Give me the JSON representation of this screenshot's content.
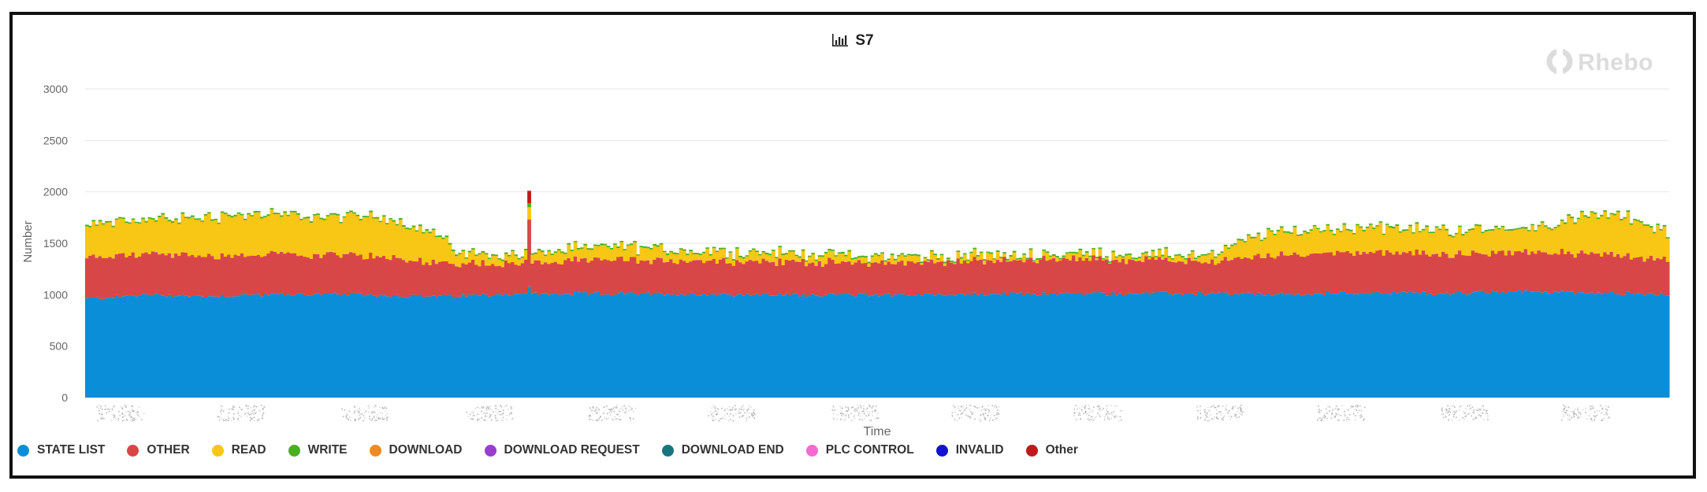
{
  "chart_data": {
    "type": "bar",
    "stacked": true,
    "title": "S7",
    "xlabel": "Time",
    "ylabel": "Number",
    "ylim": [
      0,
      3000
    ],
    "yticks": [
      0,
      500,
      1000,
      1500,
      2000,
      2500,
      3000
    ],
    "grid": true,
    "legend_position": "bottom-left",
    "bar_count": 480,
    "series": [
      {
        "name": "STATE LIST",
        "color": "#0a8ed8",
        "profile": [
          [
            0,
            960
          ],
          [
            20,
            970
          ],
          [
            80,
            1000
          ],
          [
            160,
            985
          ],
          [
            230,
            1000
          ],
          [
            300,
            1005
          ],
          [
            370,
            1000
          ],
          [
            460,
            980
          ],
          [
            560,
            1005
          ],
          [
            700,
            1010
          ],
          [
            900,
            1000
          ],
          [
            1100,
            1000
          ],
          [
            1300,
            1010
          ],
          [
            1500,
            1010
          ],
          [
            1600,
            1000
          ],
          [
            1700,
            1020
          ],
          [
            1800,
            1010
          ],
          [
            1900,
            1030
          ],
          [
            2000,
            1020
          ],
          [
            2100,
            1000
          ]
        ]
      },
      {
        "name": "OTHER",
        "color": "#d84747",
        "profile": [
          [
            0,
            400
          ],
          [
            200,
            390
          ],
          [
            400,
            375
          ],
          [
            460,
            330
          ],
          [
            560,
            300
          ],
          [
            700,
            330
          ],
          [
            900,
            320
          ],
          [
            1100,
            310
          ],
          [
            1300,
            340
          ],
          [
            1500,
            310
          ],
          [
            1550,
            360
          ],
          [
            1600,
            390
          ],
          [
            1700,
            400
          ],
          [
            1800,
            380
          ],
          [
            1900,
            380
          ],
          [
            2000,
            380
          ],
          [
            2100,
            340
          ]
        ]
      },
      {
        "name": "READ",
        "color": "#f8c614",
        "profile": [
          [
            0,
            300
          ],
          [
            80,
            330
          ],
          [
            150,
            360
          ],
          [
            200,
            390
          ],
          [
            300,
            370
          ],
          [
            400,
            370
          ],
          [
            460,
            300
          ],
          [
            500,
            80
          ],
          [
            560,
            70
          ],
          [
            640,
            100
          ],
          [
            700,
            120
          ],
          [
            800,
            90
          ],
          [
            900,
            80
          ],
          [
            1000,
            60
          ],
          [
            1100,
            50
          ],
          [
            1200,
            40
          ],
          [
            1300,
            40
          ],
          [
            1400,
            50
          ],
          [
            1500,
            50
          ],
          [
            1550,
            200
          ],
          [
            1600,
            220
          ],
          [
            1700,
            230
          ],
          [
            1800,
            230
          ],
          [
            1900,
            220
          ],
          [
            1950,
            280
          ],
          [
            2000,
            360
          ],
          [
            2050,
            380
          ],
          [
            2100,
            250
          ]
        ]
      },
      {
        "name": "WRITE",
        "color": "#4caf1f",
        "profile": [
          [
            0,
            14
          ],
          [
            2100,
            14
          ]
        ]
      },
      {
        "name": "DOWNLOAD",
        "color": "#f08a1f",
        "profile": [
          [
            0,
            0
          ],
          [
            2100,
            0
          ]
        ]
      },
      {
        "name": "DOWNLOAD REQUEST",
        "color": "#9a3ccf",
        "profile": [
          [
            0,
            0
          ],
          [
            2100,
            0
          ]
        ]
      },
      {
        "name": "DOWNLOAD END",
        "color": "#17757f",
        "profile": [
          [
            0,
            0
          ],
          [
            2100,
            0
          ]
        ]
      },
      {
        "name": "PLC CONTROL",
        "color": "#f36ad1",
        "profile": [
          [
            0,
            0
          ],
          [
            2100,
            0
          ]
        ]
      },
      {
        "name": "INVALID",
        "color": "#1112d3",
        "profile": [
          [
            0,
            0
          ],
          [
            2100,
            0
          ]
        ]
      },
      {
        "name": "Other",
        "color": "#be1a1a",
        "profile": [
          [
            0,
            0
          ],
          [
            2100,
            0
          ]
        ]
      }
    ],
    "spike": {
      "index": 134,
      "state_list": 1080,
      "other": 650,
      "read": 120,
      "write": 40,
      "other_dark": 120
    }
  },
  "brand": "Rhebo"
}
